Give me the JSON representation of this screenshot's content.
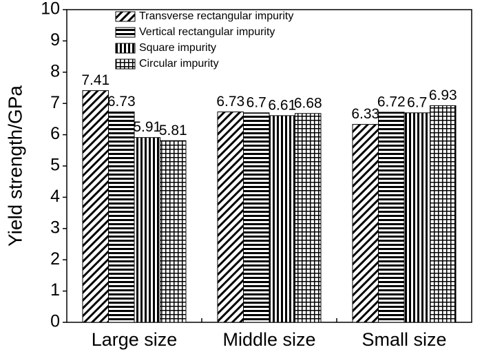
{
  "chart_data": {
    "type": "bar",
    "y_label": "Yield strength/GPa",
    "categories": [
      "Large size",
      "Middle size",
      "Small size"
    ],
    "series": [
      {
        "name": "Transverse rectangular impurity",
        "color": "#000000",
        "pattern": "diagonal",
        "values": [
          7.41,
          6.73,
          6.33
        ]
      },
      {
        "name": "Vertical rectangular impurity",
        "color": "#000000",
        "pattern": "horizontal",
        "values": [
          6.73,
          6.7,
          6.72
        ]
      },
      {
        "name": "Square impurity",
        "color": "#000000",
        "pattern": "vertical",
        "values": [
          5.91,
          6.61,
          6.7
        ]
      },
      {
        "name": "Circular impurity",
        "color": "#000000",
        "pattern": "grid",
        "values": [
          5.81,
          6.68,
          6.93
        ]
      }
    ],
    "ylim": [
      0,
      10
    ],
    "yticks": [
      0,
      1,
      2,
      3,
      4,
      5,
      6,
      7,
      8,
      9,
      10
    ],
    "grid": false,
    "legend": "top"
  }
}
